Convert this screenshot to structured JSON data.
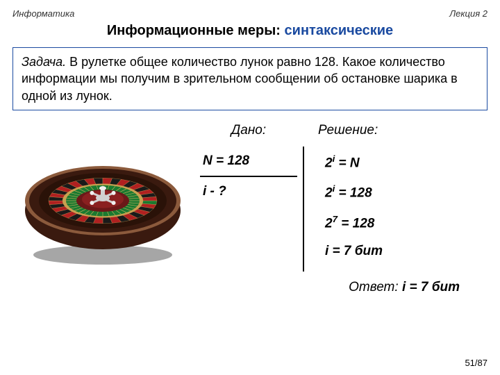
{
  "header": {
    "left": "Информатика",
    "right": "Лекция 2"
  },
  "title": {
    "main": "Информационные меры: ",
    "accent": "синтаксические"
  },
  "problem": {
    "label": "Задача.",
    "text": " В рулетке общее количество лунок равно 128. Какое количество информации мы получим в зрительном сообщении об остановке шарика в одной из лунок."
  },
  "solution_headers": {
    "given": "Дано:",
    "solution": "Решение:"
  },
  "given": {
    "n_label": "N = 128",
    "i_label": "i - ?"
  },
  "steps": {
    "s1_pre": "2",
    "s1_sup": "i",
    "s1_post": " = N",
    "s2_pre": "2",
    "s2_sup": "i",
    "s2_post": " = 128",
    "s3_pre": "2",
    "s3_sup": "7",
    "s3_post": " = 128",
    "s4": "i = 7 бит"
  },
  "answer": {
    "label": "Ответ: ",
    "value": "i = 7 бит"
  },
  "pager": "51/87",
  "roulette": {
    "outer_color": "#3a1a0f",
    "rim_highlight": "#8b5a3c",
    "track_color": "#2a1208",
    "seg_red": "#b02020",
    "seg_black": "#1a1a1a",
    "seg_green": "#1a7a30",
    "inner_ring": "#c9a050",
    "cone_color": "#6b1818",
    "hub_color": "#d0d0d0",
    "shadow": "rgba(0,0,0,0.35)"
  }
}
